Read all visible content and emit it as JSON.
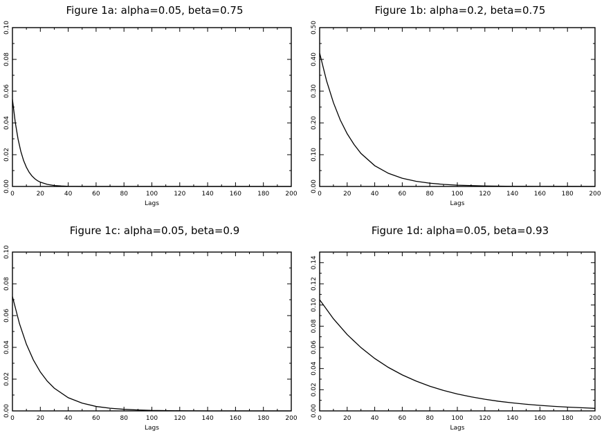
{
  "chart_data": [
    {
      "type": "line",
      "title": "Figure 1a: alpha=0.05, beta=0.75",
      "xlabel": "Lags",
      "ylabel": "",
      "xlim": [
        0,
        200
      ],
      "ylim": [
        0,
        0.1
      ],
      "xticks": [
        0,
        20,
        40,
        60,
        80,
        100,
        120,
        140,
        160,
        180,
        200
      ],
      "yticks": [
        0.0,
        0.02,
        0.04,
        0.06,
        0.08,
        0.1
      ],
      "ytick_labels": [
        "0.00",
        "0.02",
        "0.04",
        "0.06",
        "0.08",
        "0.10"
      ],
      "grid": false,
      "series": [
        {
          "x": [
            0,
            2,
            4,
            6,
            8,
            10,
            12,
            14,
            16,
            18,
            20,
            25,
            30,
            35,
            40,
            50,
            60,
            80,
            100,
            150,
            200
          ],
          "values": [
            0.0548,
            0.0405,
            0.0299,
            0.0221,
            0.0163,
            0.0121,
            0.0089,
            0.0066,
            0.0049,
            0.0036,
            0.0027,
            0.0013,
            0.0006,
            0.0003,
            0.0001,
            0.0,
            0.0,
            0.0,
            0.0,
            0.0,
            0.0
          ]
        }
      ]
    },
    {
      "type": "line",
      "title": "Figure 1b: alpha=0.2, beta=0.75",
      "xlabel": "Lags",
      "ylabel": "",
      "xlim": [
        0,
        200
      ],
      "ylim": [
        0,
        0.5
      ],
      "xticks": [
        0,
        20,
        40,
        60,
        80,
        100,
        120,
        140,
        160,
        180,
        200
      ],
      "yticks": [
        0.0,
        0.1,
        0.2,
        0.3,
        0.4,
        0.5
      ],
      "ytick_labels": [
        "0.00",
        "0.10",
        "0.20",
        "0.30",
        "0.40",
        "0.50"
      ],
      "grid": false,
      "series": [
        {
          "x": [
            0,
            5,
            10,
            15,
            20,
            25,
            30,
            40,
            50,
            60,
            70,
            80,
            90,
            100,
            120,
            140,
            160,
            180,
            200
          ],
          "values": [
            0.42,
            0.333,
            0.264,
            0.209,
            0.166,
            0.132,
            0.104,
            0.0654,
            0.0412,
            0.0259,
            0.0163,
            0.0103,
            0.0065,
            0.0041,
            0.0016,
            0.0006,
            0.0003,
            0.0001,
            0.0
          ]
        }
      ]
    },
    {
      "type": "line",
      "title": "Figure 1c: alpha=0.05, beta=0.9",
      "xlabel": "Lags",
      "ylabel": "",
      "xlim": [
        0,
        200
      ],
      "ylim": [
        0,
        0.1
      ],
      "xticks": [
        0,
        20,
        40,
        60,
        80,
        100,
        120,
        140,
        160,
        180,
        200
      ],
      "yticks": [
        0.0,
        0.02,
        0.04,
        0.06,
        0.08,
        0.1
      ],
      "ytick_labels": [
        "0.00",
        "0.02",
        "0.04",
        "0.06",
        "0.08",
        "0.10"
      ],
      "grid": false,
      "series": [
        {
          "x": [
            0,
            5,
            10,
            15,
            20,
            25,
            30,
            40,
            50,
            60,
            70,
            80,
            90,
            100,
            120,
            140,
            160,
            180,
            200
          ],
          "values": [
            0.072,
            0.055,
            0.042,
            0.0321,
            0.0245,
            0.0187,
            0.0143,
            0.0083,
            0.0049,
            0.0028,
            0.0017,
            0.001,
            0.0006,
            0.0003,
            0.0001,
            0.0,
            0.0,
            0.0,
            0.0
          ]
        }
      ]
    },
    {
      "type": "line",
      "title": "Figure 1d: alpha=0.05, beta=0.93",
      "xlabel": "Lags",
      "ylabel": "",
      "xlim": [
        0,
        200
      ],
      "ylim": [
        0,
        0.15
      ],
      "xticks": [
        0,
        20,
        40,
        60,
        80,
        100,
        120,
        140,
        160,
        180,
        200
      ],
      "yticks": [
        0.0,
        0.02,
        0.04,
        0.06,
        0.08,
        0.1,
        0.12,
        0.14
      ],
      "ytick_labels": [
        "0.00",
        "0.02",
        "0.04",
        "0.06",
        "0.08",
        "0.10",
        "0.12",
        "0.14"
      ],
      "grid": false,
      "series": [
        {
          "x": [
            0,
            10,
            20,
            30,
            40,
            50,
            60,
            70,
            80,
            90,
            100,
            110,
            120,
            130,
            140,
            150,
            160,
            170,
            180,
            190,
            200
          ],
          "values": [
            0.105,
            0.087,
            0.0721,
            0.0598,
            0.0495,
            0.041,
            0.034,
            0.0282,
            0.0233,
            0.0193,
            0.016,
            0.0133,
            0.011,
            0.0091,
            0.0076,
            0.0063,
            0.0052,
            0.0043,
            0.0036,
            0.003,
            0.0024
          ]
        }
      ]
    }
  ]
}
